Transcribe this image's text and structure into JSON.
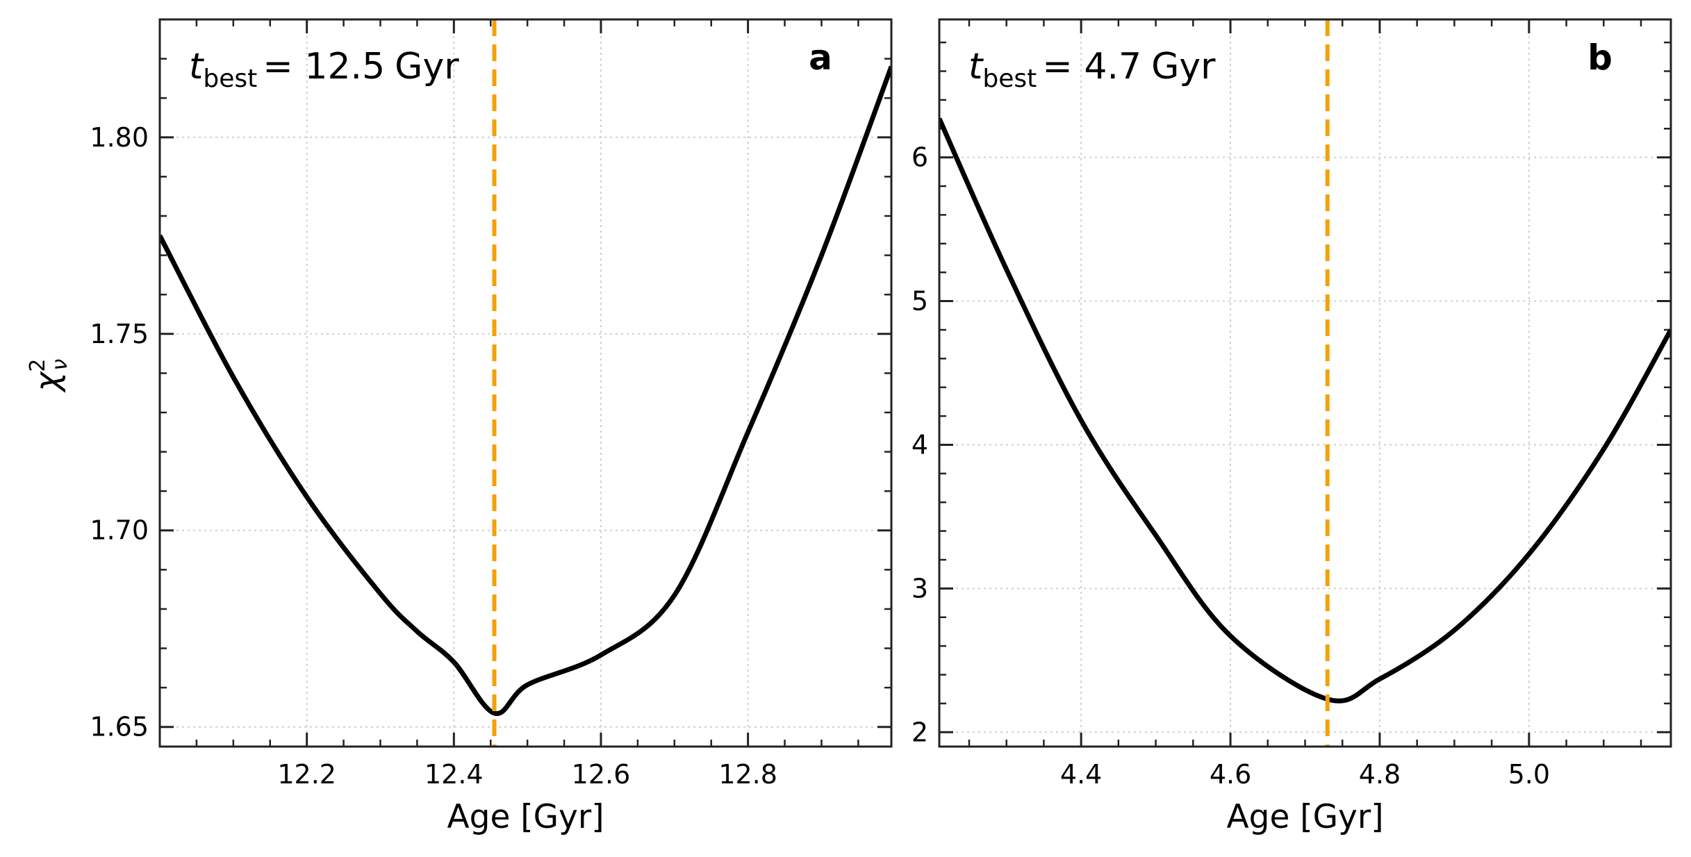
{
  "chart_data": [
    {
      "type": "line",
      "panel_label": "a",
      "annotation": {
        "var": "t",
        "sub": "best",
        "eq": "= ",
        "value": "12.5",
        "unit": "Gyr"
      },
      "xlabel": "Age [Gyr]",
      "ylabel": {
        "symbol": "χ",
        "sup": "2",
        "sub": "ν"
      },
      "xlim": [
        12.0,
        12.995
      ],
      "ylim": [
        1.645,
        1.83
      ],
      "xticks": [
        12.2,
        12.4,
        12.6,
        12.8
      ],
      "xtick_labels": [
        "12.2",
        "12.4",
        "12.6",
        "12.8"
      ],
      "yticks": [
        1.65,
        1.7,
        1.75,
        1.8
      ],
      "ytick_labels": [
        "1.65",
        "1.70",
        "1.75",
        "1.80"
      ],
      "x_minor_step": 0.05,
      "y_minor_step": 0.01,
      "grid": true,
      "best_fit_x": 12.455,
      "series": [
        {
          "name": "chi2_nu",
          "color": "#000000",
          "x": [
            12.0,
            12.1,
            12.2,
            12.3,
            12.35,
            12.4,
            12.455,
            12.5,
            12.6,
            12.7,
            12.8,
            12.9,
            12.995
          ],
          "y": [
            1.775,
            1.739,
            1.7085,
            1.6839,
            1.6743,
            1.6665,
            1.6535,
            1.6607,
            1.6683,
            1.6835,
            1.725,
            1.77,
            1.818
          ]
        }
      ],
      "vline_color": "#f5a00a"
    },
    {
      "type": "line",
      "panel_label": "b",
      "annotation": {
        "var": "t",
        "sub": "best",
        "eq": "= ",
        "value": "4.7",
        "unit": "Gyr"
      },
      "xlabel": "Age [Gyr]",
      "ylabel": null,
      "xlim": [
        4.21,
        5.19
      ],
      "ylim": [
        1.9,
        6.96
      ],
      "xticks": [
        4.4,
        4.6,
        4.8,
        5.0
      ],
      "xtick_labels": [
        "4.4",
        "4.6",
        "4.8",
        "5.0"
      ],
      "yticks": [
        2,
        3,
        4,
        5,
        6
      ],
      "ytick_labels": [
        "2",
        "3",
        "4",
        "5",
        "6"
      ],
      "x_minor_step": 0.05,
      "y_minor_step": 0.2,
      "grid": true,
      "best_fit_x": 4.73,
      "series": [
        {
          "name": "chi2_nu",
          "color": "#000000",
          "x": [
            4.21,
            4.3,
            4.4,
            4.5,
            4.6,
            4.73,
            4.8,
            4.9,
            5.0,
            5.1,
            5.19
          ],
          "y": [
            6.27,
            5.22,
            4.17,
            3.37,
            2.67,
            2.23,
            2.37,
            2.71,
            3.24,
            3.97,
            4.8
          ]
        }
      ],
      "vline_color": "#f5a00a"
    }
  ]
}
